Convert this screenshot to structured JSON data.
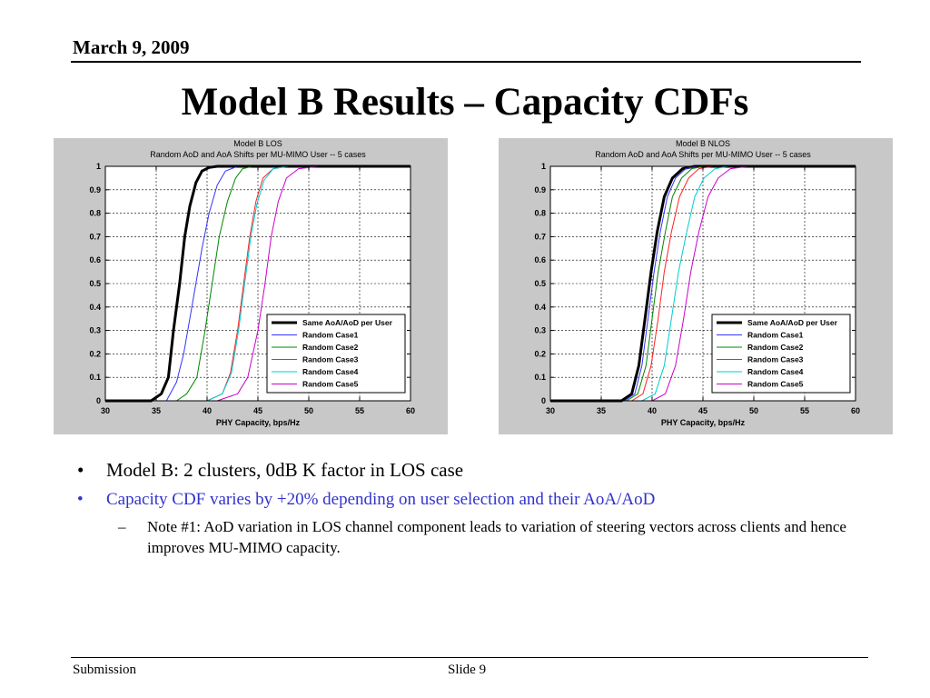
{
  "header": {
    "date": "March 9, 2009",
    "title": "Model B Results – Capacity CDFs"
  },
  "bullets": {
    "b1": "Model B: 2 clusters, 0dB K factor in LOS case",
    "b2": "Capacity CDF varies by +20% depending on user selection and their AoA/AoD",
    "b3": "Note #1: AoD variation in LOS channel component leads to variation of steering vectors across clients and hence improves MU-MIMO capacity.",
    "bullet_glyph": "•",
    "dash_glyph": "–"
  },
  "footer": {
    "left": "Submission",
    "slide": "Slide 9"
  },
  "colors": [
    "#000000",
    "#3333ff",
    "#008800",
    "#ff2222",
    "#00cccc",
    "#cc00cc"
  ],
  "chart_data": [
    {
      "type": "line",
      "title": "Model B LOS",
      "subtitle": "Random AoD and AoA Shifts per MU-MIMO User -- 5 cases",
      "xlabel": "PHY Capacity, bps/Hz",
      "ylabel": "",
      "xlim": [
        30,
        60
      ],
      "ylim": [
        0,
        1
      ],
      "xticks": [
        30,
        35,
        40,
        45,
        50,
        55,
        60
      ],
      "yticks": [
        0,
        0.1,
        0.2,
        0.3,
        0.4,
        0.5,
        0.6,
        0.7,
        0.8,
        0.9,
        1
      ],
      "grid": true,
      "legend_position": "lower-right",
      "series": [
        {
          "name": "Same AoA/AoD per User",
          "color": "#000000",
          "width": 3,
          "x": [
            30,
            34.5,
            35.5,
            36.2,
            36.7,
            37.3,
            37.8,
            38.3,
            38.9,
            39.5,
            40.2,
            41,
            60
          ],
          "y": [
            0,
            0,
            0.03,
            0.1,
            0.3,
            0.5,
            0.7,
            0.83,
            0.93,
            0.98,
            0.995,
            1,
            1
          ]
        },
        {
          "name": "Random Case1",
          "color": "#3333ff",
          "width": 1,
          "x": [
            30,
            36,
            37,
            37.7,
            38.3,
            38.9,
            39.5,
            40.2,
            41,
            41.8,
            43,
            60
          ],
          "y": [
            0,
            0,
            0.08,
            0.2,
            0.35,
            0.5,
            0.65,
            0.8,
            0.92,
            0.98,
            1,
            1
          ]
        },
        {
          "name": "Random Case2",
          "color": "#008800",
          "width": 1,
          "x": [
            30,
            37,
            38,
            39,
            39.8,
            40.5,
            41.2,
            42,
            42.8,
            43.5,
            44.5,
            60
          ],
          "y": [
            0,
            0,
            0.03,
            0.1,
            0.3,
            0.5,
            0.7,
            0.85,
            0.95,
            0.99,
            1,
            1
          ]
        },
        {
          "name": "Random Case3",
          "color": "#ff2222",
          "width": 1,
          "x": [
            30,
            40,
            41.5,
            42.3,
            43,
            43.6,
            44.2,
            44.8,
            45.5,
            46.5,
            48,
            60
          ],
          "y": [
            0,
            0,
            0.03,
            0.12,
            0.3,
            0.5,
            0.7,
            0.85,
            0.95,
            0.99,
            1,
            1
          ]
        },
        {
          "name": "Random Case4",
          "color": "#00cccc",
          "width": 1,
          "x": [
            30,
            40,
            41.5,
            42.4,
            43.1,
            43.7,
            44.3,
            44.9,
            45.6,
            46.5,
            48,
            60
          ],
          "y": [
            0,
            0,
            0.03,
            0.12,
            0.3,
            0.5,
            0.7,
            0.84,
            0.94,
            0.99,
            1,
            1
          ]
        },
        {
          "name": "Random Case5",
          "color": "#cc00cc",
          "width": 1,
          "x": [
            30,
            41,
            43,
            44,
            45,
            45.7,
            46.3,
            47,
            47.8,
            49,
            51,
            60
          ],
          "y": [
            0,
            0,
            0.03,
            0.1,
            0.3,
            0.5,
            0.7,
            0.85,
            0.95,
            0.99,
            1,
            1
          ]
        }
      ]
    },
    {
      "type": "line",
      "title": "Model B NLOS",
      "subtitle": "Random AoD and AoA Shifts per MU-MIMO User -- 5 cases",
      "xlabel": "PHY Capacity, bps/Hz",
      "ylabel": "",
      "xlim": [
        30,
        60
      ],
      "ylim": [
        0,
        1
      ],
      "xticks": [
        30,
        35,
        40,
        45,
        50,
        55,
        60
      ],
      "yticks": [
        0,
        0.1,
        0.2,
        0.3,
        0.4,
        0.5,
        0.6,
        0.7,
        0.8,
        0.9,
        1
      ],
      "grid": true,
      "legend_position": "lower-right",
      "series": [
        {
          "name": "Same AoA/AoD per User",
          "color": "#000000",
          "width": 3,
          "x": [
            30,
            37,
            38,
            38.7,
            39.3,
            39.9,
            40.5,
            41.2,
            42,
            43,
            44.2,
            60
          ],
          "y": [
            0,
            0,
            0.03,
            0.15,
            0.35,
            0.55,
            0.72,
            0.87,
            0.95,
            0.99,
            1,
            1
          ]
        },
        {
          "name": "Random Case1",
          "color": "#3333ff",
          "width": 1,
          "x": [
            30,
            37.3,
            38.3,
            39,
            39.6,
            40.2,
            40.8,
            41.5,
            42.3,
            43.3,
            44.5,
            60
          ],
          "y": [
            0,
            0,
            0.03,
            0.15,
            0.35,
            0.55,
            0.72,
            0.87,
            0.95,
            0.99,
            1,
            1
          ]
        },
        {
          "name": "Random Case2",
          "color": "#008800",
          "width": 1,
          "x": [
            30,
            37.5,
            38.6,
            39.4,
            40,
            40.6,
            41.3,
            42,
            42.9,
            43.9,
            45.2,
            60
          ],
          "y": [
            0,
            0,
            0.03,
            0.15,
            0.35,
            0.55,
            0.72,
            0.87,
            0.95,
            0.99,
            1,
            1
          ]
        },
        {
          "name": "Random Case3",
          "color": "#ff2222",
          "width": 1,
          "x": [
            30,
            38,
            39.1,
            39.9,
            40.6,
            41.2,
            41.9,
            42.7,
            43.6,
            44.6,
            46,
            60
          ],
          "y": [
            0,
            0,
            0.03,
            0.15,
            0.35,
            0.55,
            0.72,
            0.87,
            0.95,
            0.99,
            1,
            1
          ]
        },
        {
          "name": "Random Case4",
          "color": "#00cccc",
          "width": 1,
          "x": [
            30,
            39,
            40.3,
            41.2,
            41.9,
            42.6,
            43.4,
            44.2,
            45.1,
            46.2,
            47.5,
            60
          ],
          "y": [
            0,
            0,
            0.03,
            0.15,
            0.35,
            0.55,
            0.72,
            0.87,
            0.95,
            0.99,
            1,
            1
          ]
        },
        {
          "name": "Random Case5",
          "color": "#cc00cc",
          "width": 1,
          "x": [
            30,
            40,
            41.3,
            42.3,
            43.1,
            43.8,
            44.6,
            45.5,
            46.5,
            47.7,
            49.5,
            60
          ],
          "y": [
            0,
            0,
            0.03,
            0.15,
            0.35,
            0.55,
            0.72,
            0.87,
            0.95,
            0.99,
            1,
            1
          ]
        }
      ]
    }
  ]
}
